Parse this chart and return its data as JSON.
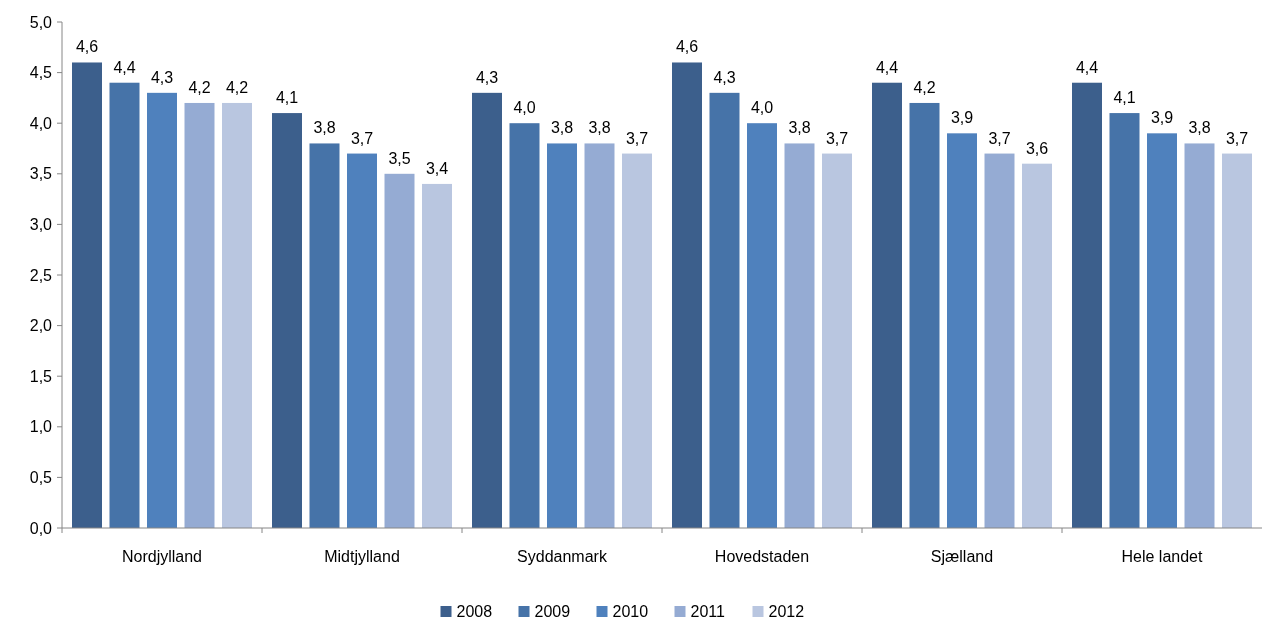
{
  "chart_data": {
    "type": "bar",
    "categories": [
      "Nordjylland",
      "Midtjylland",
      "Syddanmark",
      "Hovedstaden",
      "Sjælland",
      "Hele landet"
    ],
    "series": [
      {
        "name": "2008",
        "color": "#3c5f8c",
        "values": [
          4.6,
          4.1,
          4.3,
          4.6,
          4.4,
          4.4
        ],
        "value_labels": [
          "4,6",
          "4,1",
          "4,3",
          "4,6",
          "4,4",
          "4,4"
        ]
      },
      {
        "name": "2009",
        "color": "#4673a8",
        "values": [
          4.4,
          3.8,
          4.0,
          4.3,
          4.2,
          4.1
        ],
        "value_labels": [
          "4,4",
          "3,8",
          "4,0",
          "4,3",
          "4,2",
          "4,1"
        ]
      },
      {
        "name": "2010",
        "color": "#4f81bd",
        "values": [
          4.3,
          3.7,
          3.8,
          4.0,
          3.9,
          3.9
        ],
        "value_labels": [
          "4,3",
          "3,7",
          "3,8",
          "4,0",
          "3,9",
          "3,9"
        ]
      },
      {
        "name": "2011",
        "color": "#95abd3",
        "values": [
          4.2,
          3.5,
          3.8,
          3.8,
          3.7,
          3.8
        ],
        "value_labels": [
          "4,2",
          "3,5",
          "3,8",
          "3,8",
          "3,7",
          "3,8"
        ]
      },
      {
        "name": "2012",
        "color": "#b9c6e0",
        "values": [
          4.2,
          3.4,
          3.7,
          3.7,
          3.6,
          3.7
        ],
        "value_labels": [
          "4,2",
          "3,4",
          "3,7",
          "3,7",
          "3,6",
          "3,7"
        ]
      }
    ],
    "ylim": [
      0,
      5
    ],
    "yticks": [
      {
        "value": 0,
        "label": "0,0"
      },
      {
        "value": 0.5,
        "label": "0,5"
      },
      {
        "value": 1,
        "label": "1,0"
      },
      {
        "value": 1.5,
        "label": "1,5"
      },
      {
        "value": 2,
        "label": "2,0"
      },
      {
        "value": 2.5,
        "label": "2,5"
      },
      {
        "value": 3,
        "label": "3,0"
      },
      {
        "value": 3.5,
        "label": "3,5"
      },
      {
        "value": 4,
        "label": "4,0"
      },
      {
        "value": 4.5,
        "label": "4,5"
      },
      {
        "value": 5,
        "label": "5,0"
      }
    ],
    "grid": false,
    "legend": "bottom"
  }
}
